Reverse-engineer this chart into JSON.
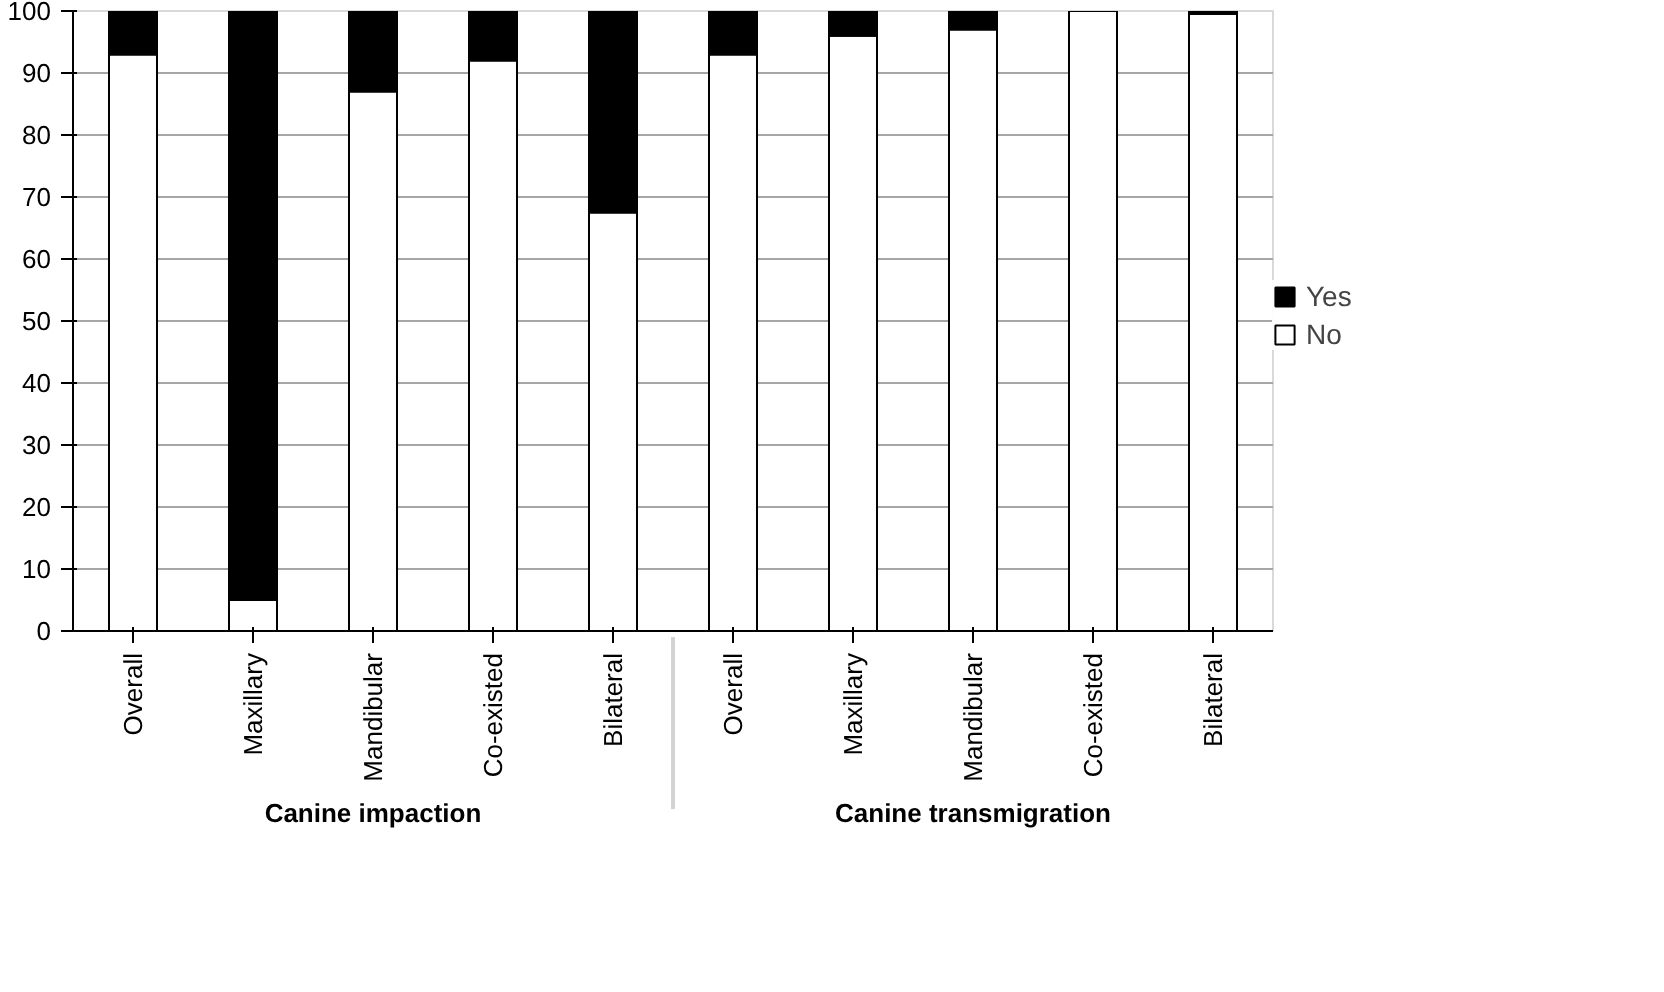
{
  "chart_data": {
    "type": "bar",
    "stacked": true,
    "categories": [
      "Overall",
      "Maxillary",
      "Mandibular",
      "Co-existed",
      "Bilateral",
      "Overall",
      "Maxillary",
      "Mandibular",
      "Co-existed",
      "Bilateral"
    ],
    "annotations": [
      "Canine impaction",
      "Canine transmigration"
    ],
    "series": [
      {
        "name": "No",
        "color": "#ffffff",
        "values": [
          93,
          5,
          87,
          92,
          67.5,
          93,
          96,
          97,
          100,
          99.5
        ]
      },
      {
        "name": "Yes",
        "color": "#000000",
        "values": [
          7,
          95,
          13,
          8,
          32.5,
          7,
          4,
          3,
          0,
          0.5
        ]
      }
    ],
    "ylim": [
      0,
      100
    ],
    "yticks": [
      0,
      10,
      20,
      30,
      40,
      50,
      60,
      70,
      80,
      90,
      100
    ],
    "grid": "y",
    "legend": "right"
  }
}
